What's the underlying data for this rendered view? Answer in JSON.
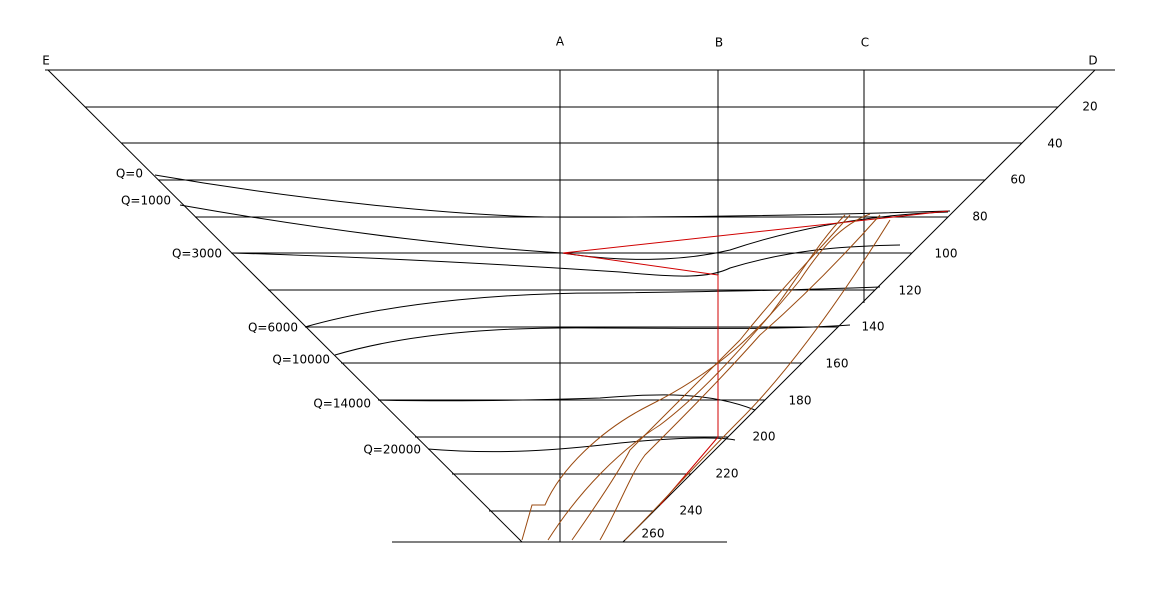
{
  "points": {
    "a": "A",
    "b": "B",
    "c": "C",
    "d": "D",
    "e": "E"
  },
  "scale": [
    "20",
    "40",
    "60",
    "80",
    "100",
    "120",
    "140",
    "160",
    "180",
    "200",
    "220",
    "240",
    "260"
  ],
  "q_labels": [
    "Q=0",
    "Q=1000",
    "Q=3000",
    "Q=6000",
    "Q=10000",
    "Q=14000",
    "Q=20000"
  ]
}
